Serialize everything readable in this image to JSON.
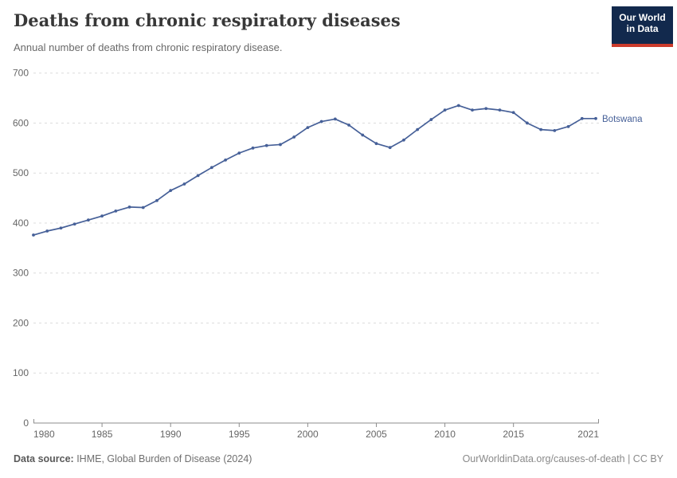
{
  "header": {
    "title": "Deaths from chronic respiratory diseases",
    "subtitle": "Annual number of deaths from chronic respiratory disease.",
    "logo": {
      "line1": "Our World",
      "line2": "in Data",
      "bg_color": "#12294d",
      "accent_color": "#cc3b2c"
    }
  },
  "chart_data": {
    "type": "line",
    "title": "Deaths from chronic respiratory diseases",
    "xlabel": "",
    "ylabel": "",
    "x": [
      1980,
      1981,
      1982,
      1983,
      1984,
      1985,
      1986,
      1987,
      1988,
      1989,
      1990,
      1991,
      1992,
      1993,
      1994,
      1995,
      1996,
      1997,
      1998,
      1999,
      2000,
      2001,
      2002,
      2003,
      2004,
      2005,
      2006,
      2007,
      2008,
      2009,
      2010,
      2011,
      2012,
      2013,
      2014,
      2015,
      2016,
      2017,
      2018,
      2019,
      2020,
      2021
    ],
    "series": [
      {
        "name": "Botswana",
        "color": "#466098",
        "values": [
          376,
          384,
          390,
          398,
          406,
          414,
          424,
          432,
          431,
          445,
          465,
          478,
          495,
          511,
          526,
          540,
          550,
          555,
          557,
          572,
          591,
          603,
          608,
          596,
          576,
          559,
          551,
          566,
          587,
          607,
          626,
          635,
          626,
          629,
          626,
          621,
          600,
          587,
          585,
          593,
          609,
          609
        ]
      }
    ],
    "xlim": [
      1980,
      2021
    ],
    "ylim": [
      0,
      700
    ],
    "xticks": [
      1980,
      1985,
      1990,
      1995,
      2000,
      2005,
      2010,
      2015,
      2021
    ],
    "yticks": [
      0,
      100,
      200,
      300,
      400,
      500,
      600,
      700
    ],
    "grid": "horizontal-dashed",
    "legend_position": "end-of-line-label",
    "colors": {
      "grid": "#dcdcdc",
      "axis": "#8c8c8c",
      "tick_label": "#666666"
    }
  },
  "footer": {
    "source_label": "Data source:",
    "source_text": " IHME, Global Burden of Disease (2024)",
    "rights": "OurWorldinData.org/causes-of-death | CC BY"
  }
}
